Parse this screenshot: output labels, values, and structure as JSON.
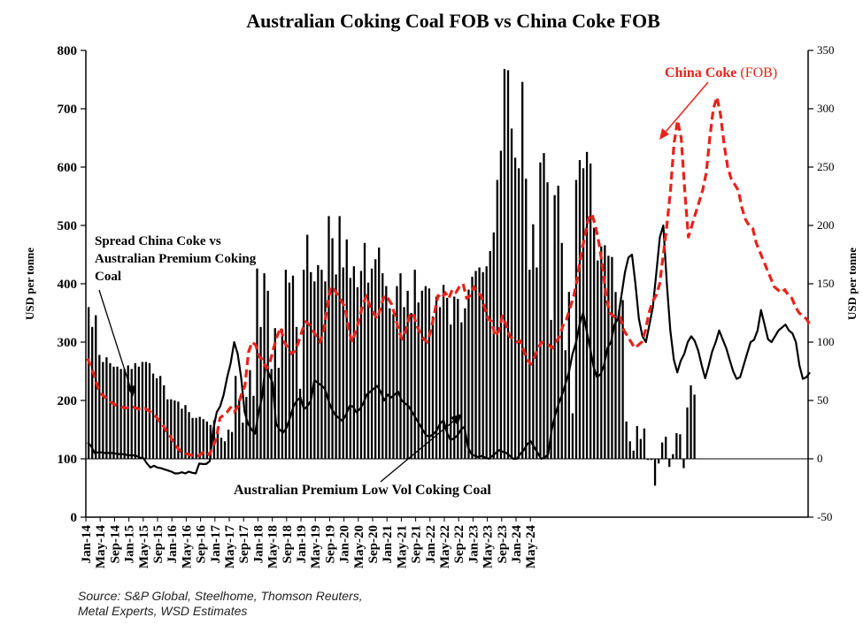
{
  "chart_data": {
    "type": "bar+line",
    "title": "Australian Coking Coal FOB vs China Coke FOB",
    "ylabel_left": "USD per tonne",
    "ylabel_right": "USD per tonne",
    "ylim_left": [
      0,
      800
    ],
    "ylim_right": [
      -50,
      350
    ],
    "yticks_left": [
      "0",
      "100",
      "200",
      "300",
      "400",
      "500",
      "600",
      "700",
      "800"
    ],
    "yticks_right": [
      "-50",
      "0",
      "50",
      "100",
      "150",
      "200",
      "250",
      "300",
      "350"
    ],
    "x_start": "2014-01",
    "xtick_labels": [
      "Jan-14",
      "May-14",
      "Sep-14",
      "Jan-15",
      "May-15",
      "Sep-15",
      "Jan-16",
      "May-16",
      "Sep-16",
      "Jan-17",
      "May-17",
      "Sep-17",
      "Jan-18",
      "May-18",
      "Sep-18",
      "Jan-19",
      "May-19",
      "Sep-19",
      "Jan-20",
      "May-20",
      "Sep-20",
      "Jan-21",
      "May-21",
      "Sep-21",
      "Jan-22",
      "May-22",
      "Sep-22",
      "Jan-23",
      "May-23",
      "Sep-23",
      "Jan-24",
      "May-24"
    ],
    "series": [
      {
        "name": "Spread China Coke vs Australian Premium Coking Coal",
        "type": "bar",
        "axis": "right",
        "color": "#000000",
        "values": [
          130,
          113,
          123,
          89,
          83,
          87,
          82,
          79,
          79,
          77,
          77,
          80,
          77,
          82,
          79,
          83,
          83,
          82,
          73,
          69,
          71,
          63,
          51,
          51,
          50,
          49,
          43,
          46,
          40,
          35,
          35,
          36,
          34,
          32,
          29,
          33,
          27,
          18,
          15,
          25,
          23,
          71,
          51,
          31,
          53,
          76,
          54,
          163,
          113,
          159,
          144,
          77,
          112,
          78,
          111,
          162,
          151,
          157,
          113,
          60,
          162,
          192,
          160,
          152,
          166,
          162,
          152,
          208,
          189,
          158,
          208,
          164,
          188,
          155,
          165,
          147,
          161,
          185,
          151,
          163,
          171,
          181,
          159,
          148,
          129,
          124,
          148,
          159,
          130,
          144,
          125,
          162,
          134,
          144,
          148,
          146,
          122,
          139,
          130,
          149,
          138,
          115,
          139,
          137,
          117,
          129,
          145,
          156,
          161,
          164,
          160,
          165,
          178,
          194,
          239,
          264,
          334,
          333,
          283,
          258,
          249,
          323,
          240,
          162,
          201,
          164,
          254,
          262,
          237,
          119,
          226,
          234,
          185,
          93,
          143,
          39,
          239,
          256,
          249,
          263,
          253,
          198,
          170,
          182,
          183,
          174,
          173,
          143,
          128,
          136,
          32,
          15,
          7,
          28,
          17,
          26,
          -1,
          -1,
          -23,
          -4,
          14,
          19,
          -7,
          4,
          22,
          21,
          -8,
          44,
          63,
          55
        ]
      },
      {
        "name": "China Coke (FOB)",
        "type": "line",
        "style": "dashed",
        "axis": "left",
        "color": "#e8221a",
        "values": [
          272,
          257,
          240,
          220,
          210,
          205,
          200,
          195,
          192,
          190,
          188,
          187,
          190,
          188,
          186,
          184,
          186,
          183,
          178,
          173,
          165,
          158,
          148,
          140,
          128,
          120,
          113,
          110,
          108,
          106,
          105,
          105,
          110,
          113,
          107,
          120,
          135,
          170,
          175,
          180,
          188,
          180,
          190,
          210,
          225,
          283,
          300,
          295,
          275,
          270,
          255,
          265,
          290,
          310,
          325,
          300,
          290,
          280,
          285,
          300,
          320,
          335,
          330,
          320,
          310,
          300,
          320,
          360,
          395,
          390,
          380,
          370,
          360,
          320,
          300,
          320,
          340,
          365,
          380,
          360,
          350,
          340,
          360,
          380,
          375,
          365,
          345,
          320,
          305,
          320,
          345,
          350,
          330,
          315,
          305,
          300,
          320,
          350,
          380,
          375,
          385,
          375,
          390,
          385,
          395,
          400,
          375,
          380,
          395,
          385,
          380,
          360,
          340,
          335,
          310,
          320,
          345,
          330,
          310,
          305,
          300,
          302,
          285,
          270,
          262,
          275,
          290,
          300,
          298,
          295,
          290,
          300,
          310,
          330,
          340,
          360,
          380,
          410,
          450,
          480,
          510,
          520,
          500,
          470,
          430,
          380,
          350,
          345,
          340,
          342,
          320,
          310,
          300,
          290,
          295,
          300,
          320,
          350,
          370,
          380,
          400,
          450,
          500,
          560,
          640,
          680,
          650,
          560,
          480,
          500,
          520,
          540,
          560,
          590,
          650,
          700,
          720,
          690,
          640,
          600,
          580,
          570,
          560,
          530,
          510,
          500,
          495,
          470,
          455,
          440,
          425,
          410,
          395,
          390,
          385,
          390,
          380,
          375,
          360,
          350,
          345,
          340,
          330
        ]
      },
      {
        "name": "Australian Premium Low Vol Coking Coal",
        "type": "line",
        "style": "solid",
        "axis": "left",
        "color": "#000000",
        "values": [
          128,
          122,
          110,
          111,
          111,
          110,
          110,
          110,
          109,
          108,
          108,
          107,
          106,
          106,
          105,
          102,
          101,
          92,
          85,
          88,
          85,
          84,
          82,
          80,
          78,
          75,
          75,
          77,
          75,
          78,
          76,
          75,
          92,
          91,
          91,
          96,
          150,
          180,
          190,
          210,
          240,
          264,
          300,
          280,
          240,
          180,
          160,
          150,
          143,
          180,
          206,
          260,
          245,
          230,
          160,
          150,
          145,
          153,
          170,
          190,
          200,
          205,
          185,
          190,
          200,
          235,
          230,
          226,
          220,
          200,
          185,
          175,
          170,
          165,
          175,
          190,
          190,
          180,
          185,
          195,
          210,
          215,
          220,
          225,
          215,
          200,
          210,
          205,
          210,
          215,
          200,
          195,
          190,
          180,
          170,
          160,
          150,
          140,
          138,
          142,
          148,
          160,
          166,
          145,
          132,
          135,
          140,
          150,
          155,
          120,
          108,
          105,
          103,
          105,
          102,
          100,
          105,
          110,
          115,
          112,
          110,
          105,
          100,
          100,
          108,
          115,
          125,
          130,
          120,
          110,
          100,
          102,
          108,
          150,
          175,
          195,
          210,
          230,
          250,
          280,
          300,
          330,
          350,
          320,
          290,
          258,
          240,
          245,
          260,
          290,
          300,
          330,
          340,
          380,
          420,
          445,
          450,
          400,
          340,
          310,
          300,
          330,
          360,
          420,
          480,
          500,
          400,
          320,
          270,
          248,
          268,
          280,
          300,
          310,
          302,
          285,
          260,
          238,
          260,
          284,
          300,
          320,
          305,
          290,
          270,
          250,
          237,
          240,
          260,
          280,
          300,
          304,
          320,
          355,
          330,
          305,
          300,
          310,
          320,
          325,
          330,
          320,
          315,
          300,
          260,
          237,
          240,
          248
        ]
      }
    ],
    "annotations": [
      {
        "text_lines": [
          "Spread China Coke vs",
          "Australian Premium Coking",
          "Coal"
        ]
      },
      {
        "text": "Australian Premium Low Vol Coking Coal"
      },
      {
        "text_parts": [
          "China Coke",
          " (FOB)"
        ]
      }
    ],
    "grid": false,
    "legend": "none"
  },
  "source_lines": [
    "Source: S&P Global, Steelhome, Thomson Reuters,",
    "Metal Experts, WSD Estimates"
  ]
}
